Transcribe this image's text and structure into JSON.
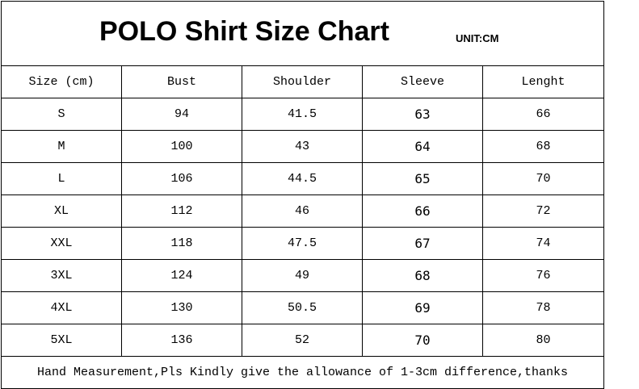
{
  "header": {
    "title": "POLO Shirt Size Chart",
    "unit": "UNIT:CM"
  },
  "table": {
    "columns": [
      "Size (cm)",
      "Bust",
      "Shoulder",
      "Sleeve",
      "Lenght"
    ],
    "rows": [
      [
        "S",
        94,
        41.5,
        63,
        66
      ],
      [
        "M",
        100,
        43,
        64,
        68
      ],
      [
        "L",
        106,
        44.5,
        65,
        70
      ],
      [
        "XL",
        112,
        46,
        66,
        72
      ],
      [
        "XXL",
        118,
        47.5,
        67,
        74
      ],
      [
        "3XL",
        124,
        49,
        68,
        76
      ],
      [
        "4XL",
        130,
        50.5,
        69,
        78
      ],
      [
        "5XL",
        136,
        52,
        70,
        80
      ]
    ]
  },
  "footer": "Hand Measurement,Pls Kindly give the allowance of 1-3cm difference,thanks"
}
